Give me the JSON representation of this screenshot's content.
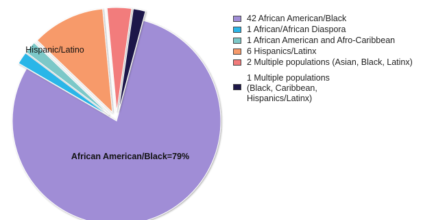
{
  "chart_data": {
    "type": "pie",
    "title": "",
    "slices": [
      {
        "label": "42 African American/Black",
        "value": 42,
        "color": "#a08dd6",
        "exploded": false
      },
      {
        "label": "1 African/African Diaspora",
        "value": 1,
        "color": "#2bb6e8",
        "exploded": true
      },
      {
        "label": "1 African American and Afro-Caribbean",
        "value": 1,
        "color": "#7cc8c8",
        "exploded": true
      },
      {
        "label": "6 Hispanics/Latinx",
        "value": 6,
        "color": "#f79a6a",
        "exploded": true
      },
      {
        "label": "2 Multiple populations (Asian, Black, Latinx)",
        "value": 2,
        "color": "#f27b7b",
        "exploded": true
      },
      {
        "label": "1 Multiple populations\n(Black, Caribbean,\nHispanics/Latinx)",
        "value": 1,
        "color": "#1e1848",
        "exploded": true
      }
    ],
    "annotations": [
      {
        "text": "African American/Black=79%",
        "slice": 0
      },
      {
        "text": "Hispanic/Latino",
        "slice": 3
      }
    ],
    "legend_placement": "right"
  }
}
